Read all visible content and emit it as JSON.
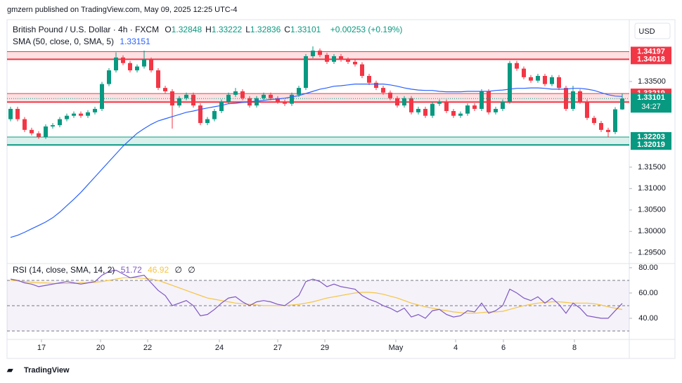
{
  "header": {
    "publisher": "gmzern published on TradingView.com, May 09, 2025 12:25 UTC-4",
    "footer": "TradingView"
  },
  "chart_data": {
    "type": "candlestick",
    "symbol": "British Pound / U.S. Dollar · 4h · FXCM",
    "ohlc_labels": [
      "O",
      "H",
      "L",
      "C"
    ],
    "change": "+0.00253 (+0.19%)",
    "currency": "USD",
    "up_color": "#089981",
    "down_color": "#f23645",
    "xlim": [
      -0.5,
      88
    ],
    "xticks": [
      {
        "value": 4.4,
        "label": "17"
      },
      {
        "value": 12.8,
        "label": "20"
      },
      {
        "value": 19.5,
        "label": "22"
      },
      {
        "value": 29.7,
        "label": "24"
      },
      {
        "value": 38,
        "label": "27"
      },
      {
        "value": 44.7,
        "label": "29"
      },
      {
        "value": 54.8,
        "label": "May"
      },
      {
        "value": 63.3,
        "label": "4"
      },
      {
        "value": 70.1,
        "label": "6"
      },
      {
        "value": 80.2,
        "label": "8"
      }
    ],
    "ylim": [
      1.2925,
      1.3491
    ],
    "yticks": [
      {
        "value": 1.295,
        "label": "1.29500"
      },
      {
        "value": 1.3,
        "label": "1.30000"
      },
      {
        "value": 1.305,
        "label": "1.30500"
      },
      {
        "value": 1.31,
        "label": "1.31000"
      },
      {
        "value": 1.315,
        "label": "1.31500"
      },
      {
        "value": 1.335,
        "label": "1.33500"
      }
    ],
    "open": [
      1.3262,
      1.3286,
      1.3262,
      1.3237,
      1.3229,
      1.3221,
      1.3245,
      1.3248,
      1.3262,
      1.327,
      1.3275,
      1.327,
      1.3278,
      1.3286,
      1.3344,
      1.3376,
      1.3406,
      1.3393,
      1.3376,
      1.3385,
      1.3401,
      1.3376,
      1.3335,
      1.3327,
      1.3294,
      1.3311,
      1.3319,
      1.3294,
      1.3253,
      1.3262,
      1.3281,
      1.3303,
      1.3319,
      1.3327,
      1.3311,
      1.3294,
      1.3311,
      1.3319,
      1.3311,
      1.3303,
      1.3298,
      1.3319,
      1.3335,
      1.3409,
      1.3422,
      1.3412,
      1.3396,
      1.3409,
      1.3401,
      1.3396,
      1.339,
      1.3363,
      1.3347,
      1.3335,
      1.3324,
      1.3311,
      1.3294,
      1.3311,
      1.3278,
      1.3286,
      1.327,
      1.3298,
      1.3303,
      1.3281,
      1.327,
      1.3275,
      1.3294,
      1.3286,
      1.3327,
      1.3278,
      1.3286,
      1.3303,
      1.3393,
      1.338,
      1.336,
      1.3352,
      1.3363,
      1.3344,
      1.336,
      1.3335,
      1.3286,
      1.3327,
      1.3303,
      1.3265,
      1.3253,
      1.3237,
      1.3232,
      1.32848
    ],
    "high": [
      1.3291,
      1.3291,
      1.3267,
      1.3242,
      1.3234,
      1.325,
      1.3253,
      1.3267,
      1.3275,
      1.328,
      1.328,
      1.3283,
      1.3291,
      1.3349,
      1.3381,
      1.3418,
      1.3411,
      1.3398,
      1.339,
      1.3422,
      1.3406,
      1.3381,
      1.334,
      1.3332,
      1.3316,
      1.3324,
      1.3324,
      1.3299,
      1.3267,
      1.3286,
      1.3308,
      1.3324,
      1.3335,
      1.3332,
      1.3316,
      1.3316,
      1.3324,
      1.3324,
      1.3316,
      1.3308,
      1.3324,
      1.334,
      1.3414,
      1.3432,
      1.3427,
      1.3417,
      1.3414,
      1.3414,
      1.3406,
      1.3401,
      1.3395,
      1.3368,
      1.3352,
      1.334,
      1.3329,
      1.3316,
      1.3316,
      1.3316,
      1.3291,
      1.3291,
      1.3303,
      1.3308,
      1.3308,
      1.3286,
      1.328,
      1.3299,
      1.3299,
      1.3332,
      1.3332,
      1.3291,
      1.3308,
      1.3398,
      1.3398,
      1.3385,
      1.3365,
      1.3368,
      1.3368,
      1.3365,
      1.3365,
      1.334,
      1.334,
      1.3332,
      1.3308,
      1.327,
      1.3258,
      1.3242,
      1.329,
      1.33222
    ],
    "low": [
      1.3257,
      1.3257,
      1.3232,
      1.3224,
      1.3216,
      1.3216,
      1.324,
      1.3243,
      1.3257,
      1.3265,
      1.3265,
      1.3265,
      1.3273,
      1.3281,
      1.3339,
      1.3371,
      1.3388,
      1.3371,
      1.3371,
      1.338,
      1.3371,
      1.333,
      1.3322,
      1.324,
      1.3289,
      1.3306,
      1.3289,
      1.3248,
      1.3248,
      1.3257,
      1.3276,
      1.3298,
      1.3314,
      1.3306,
      1.3289,
      1.3289,
      1.3306,
      1.3306,
      1.3298,
      1.3293,
      1.3293,
      1.3314,
      1.333,
      1.3404,
      1.3407,
      1.3391,
      1.3391,
      1.3396,
      1.3391,
      1.3385,
      1.3358,
      1.3342,
      1.333,
      1.3319,
      1.3306,
      1.3289,
      1.3289,
      1.3273,
      1.3273,
      1.3265,
      1.3265,
      1.3293,
      1.3276,
      1.3265,
      1.3265,
      1.327,
      1.3281,
      1.3281,
      1.3273,
      1.3273,
      1.3281,
      1.3298,
      1.3375,
      1.3355,
      1.3347,
      1.3347,
      1.3339,
      1.3339,
      1.333,
      1.3281,
      1.3281,
      1.3298,
      1.326,
      1.3248,
      1.3232,
      1.322,
      1.3227,
      1.32836
    ],
    "close": [
      1.3286,
      1.3262,
      1.3237,
      1.3229,
      1.3221,
      1.3245,
      1.3248,
      1.3262,
      1.327,
      1.3275,
      1.327,
      1.3278,
      1.3286,
      1.3344,
      1.3376,
      1.3406,
      1.3393,
      1.3376,
      1.3385,
      1.3401,
      1.3376,
      1.3335,
      1.3327,
      1.3294,
      1.3311,
      1.3319,
      1.3294,
      1.3253,
      1.3262,
      1.3281,
      1.3303,
      1.3319,
      1.3327,
      1.3311,
      1.3294,
      1.3311,
      1.3319,
      1.3311,
      1.3303,
      1.3298,
      1.3319,
      1.3335,
      1.3409,
      1.3422,
      1.3412,
      1.3396,
      1.3409,
      1.3401,
      1.3396,
      1.339,
      1.3363,
      1.3347,
      1.3335,
      1.3324,
      1.3311,
      1.3294,
      1.3311,
      1.3278,
      1.3286,
      1.327,
      1.3298,
      1.3303,
      1.3281,
      1.327,
      1.3275,
      1.3294,
      1.3286,
      1.3327,
      1.3278,
      1.3286,
      1.3303,
      1.3393,
      1.338,
      1.336,
      1.3352,
      1.3363,
      1.3344,
      1.336,
      1.3335,
      1.3286,
      1.3327,
      1.3303,
      1.3265,
      1.3253,
      1.3237,
      1.3232,
      1.3285,
      1.33101
    ],
    "sma": {
      "name": "SMA (50, close, 0, SMA, 5)",
      "color": "#2962ff",
      "values": [
        1.2986,
        1.2991,
        1.2998,
        1.3006,
        1.3014,
        1.3022,
        1.3032,
        1.3045,
        1.306,
        1.3075,
        1.3091,
        1.3109,
        1.3127,
        1.3145,
        1.3163,
        1.3181,
        1.3199,
        1.3214,
        1.3229,
        1.324,
        1.325,
        1.3258,
        1.3263,
        1.3268,
        1.3273,
        1.3278,
        1.3281,
        1.3285,
        1.3288,
        1.3291,
        1.3294,
        1.3298,
        1.3299,
        1.3301,
        1.3303,
        1.3304,
        1.3306,
        1.3308,
        1.3309,
        1.3311,
        1.3314,
        1.3317,
        1.3322,
        1.3327,
        1.3332,
        1.3335,
        1.3339,
        1.334,
        1.3342,
        1.3344,
        1.3344,
        1.3344,
        1.3344,
        1.3344,
        1.3342,
        1.3339,
        1.3335,
        1.3332,
        1.333,
        1.3329,
        1.3329,
        1.3327,
        1.3326,
        1.3326,
        1.3326,
        1.3327,
        1.3327,
        1.3327,
        1.3327,
        1.3329,
        1.333,
        1.3332,
        1.3334,
        1.3334,
        1.3335,
        1.3335,
        1.3334,
        1.3332,
        1.3332,
        1.3332,
        1.3334,
        1.3334,
        1.3332,
        1.3329,
        1.3324,
        1.3319,
        1.3316,
        1.33151
      ]
    },
    "zones": [
      {
        "low": 1.34018,
        "high": 1.34197,
        "color": "#f23645"
      },
      {
        "low": 1.33019,
        "high": 1.33219,
        "color": "#f23645"
      },
      {
        "low": 1.32019,
        "high": 1.32203,
        "color": "#089981"
      }
    ],
    "countdown": "34:27",
    "rsi": {
      "name": "RSI (14, close, SMA, 14, 2)",
      "color": "#7e57c2",
      "extra": [
        "∅",
        "∅"
      ],
      "ylim": [
        23.3,
        83.3
      ],
      "yticks": [
        {
          "value": 40,
          "label": "40.00"
        },
        {
          "value": 60,
          "label": "60.00"
        },
        {
          "value": 80,
          "label": "80.00"
        }
      ],
      "levels": [
        70,
        50,
        30
      ],
      "values": [
        71,
        70,
        68,
        67,
        65,
        66,
        67,
        68,
        69,
        68,
        67,
        68,
        69,
        74,
        77,
        78,
        75,
        72,
        73,
        74,
        68,
        62,
        58,
        50,
        52,
        54,
        50,
        42,
        43,
        47,
        52,
        56,
        57,
        53,
        50,
        53,
        54,
        53,
        51,
        50,
        54,
        58,
        69,
        71,
        69,
        65,
        67,
        65,
        64,
        63,
        58,
        55,
        53,
        50,
        48,
        45,
        48,
        41,
        43,
        40,
        46,
        47,
        43,
        41,
        42,
        46,
        45,
        52,
        44,
        46,
        50,
        63,
        60,
        56,
        54,
        57,
        52,
        56,
        51,
        44,
        52,
        48,
        42,
        41,
        40,
        40,
        46,
        51.72
      ],
      "sma_color": "#f5c542",
      "sma_values": [
        70,
        69.5,
        69,
        68.5,
        68,
        68,
        67.5,
        67.5,
        67.5,
        67.5,
        68,
        68,
        68.5,
        69,
        70,
        71,
        72,
        72,
        72,
        71.5,
        71,
        70,
        68,
        66,
        64,
        62,
        60,
        58,
        56,
        55,
        54,
        53,
        52,
        51.5,
        51,
        50.5,
        50,
        50,
        50,
        50,
        50.5,
        51,
        52,
        53,
        54.5,
        56,
        57,
        58,
        59,
        60,
        60.5,
        60.5,
        60,
        59,
        57.5,
        56,
        54,
        52,
        50.5,
        49,
        48,
        47,
        46,
        45,
        44.5,
        44,
        44,
        44.5,
        45,
        45,
        45.5,
        47,
        48.5,
        50,
        51,
        52,
        52.5,
        53,
        53,
        52.5,
        52,
        52,
        52,
        51.5,
        50.5,
        49,
        48,
        46.92
      ]
    }
  }
}
